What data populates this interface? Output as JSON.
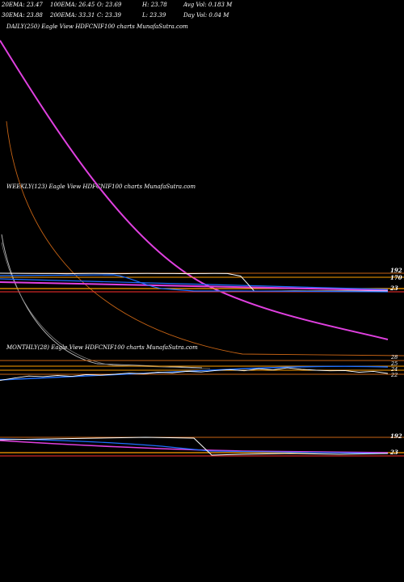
{
  "header": {
    "row1": [
      "20EMA: 23.47",
      "100EMA: 26.45",
      "O: 23.69",
      "H: 23.78",
      "Avg Vol: 0.183 M"
    ],
    "row2": [
      "30EMA: 23.88",
      "200EMA: 33.31",
      "C: 23.39",
      "L: 23.39",
      "Day Vol: 0.04 M"
    ]
  },
  "panels": {
    "daily": {
      "label": "DAILY(250) Eagle  View  HDFCNIF100  charts MunafaSutra.com"
    },
    "weekly": {
      "label": "WEEKLY(123) Eagle  View  HDFCNIF100  charts MunafaSutra.com",
      "right_labels": [
        "192",
        "170",
        "23"
      ]
    },
    "monthly": {
      "label": "MONTHLY(28) Eagle  View  HDFCNIF100  charts MunafaSutra.com",
      "right_labels": [
        "28",
        "25",
        "24",
        "22"
      ]
    },
    "bottom": {
      "right_labels": [
        "192",
        "23"
      ]
    }
  },
  "colors": {
    "background": "#000000",
    "price": "#ffffff",
    "ema_fast": "#1e6fff",
    "ema_mid": "#ffffff",
    "ema_100": "#e040e0",
    "ema_200": "#c86414",
    "grid": "#c86414",
    "marker": "#ffa000",
    "support": "#ff3030"
  },
  "chart_data": [
    {
      "type": "line",
      "panel": "daily",
      "series": [
        {
          "values": [
            58,
            52,
            47,
            43,
            39,
            36,
            33,
            31,
            29,
            27.5,
            26.5,
            25.6,
            25.0,
            24.6,
            24.3,
            24.1,
            23.9
          ]
        },
        {
          "values": [
            40,
            37,
            34,
            31.5,
            29.5,
            28,
            26.8,
            25.9,
            25.2,
            24.7,
            24.3,
            24.0,
            23.8,
            23.6,
            23.5,
            23.4,
            23.4
          ]
        }
      ]
    },
    {
      "type": "line",
      "panel": "weekly",
      "x_range": [
        0,
        123
      ],
      "y_range": [
        0,
        200
      ],
      "series": [
        {
          "values": [
            175,
            174,
            173,
            172,
            172,
            171,
            172,
            173,
            172,
            171,
            172,
            173,
            172,
            172,
            171,
            172,
            173,
            172,
            150,
            24,
            23,
            23,
            23.5,
            23,
            23.3,
            23,
            23.4,
            23.2,
            23,
            23.3
          ]
        },
        {
          "values": [
            170,
            168,
            166,
            164,
            162,
            160,
            158,
            156,
            154,
            152,
            150,
            140,
            110,
            80,
            60,
            45,
            35,
            28,
            25,
            24
          ]
        }
      ]
    },
    {
      "type": "line",
      "panel": "monthly",
      "y_range": [
        20,
        30
      ],
      "series": [
        {
          "values": [
            21.5,
            22.3,
            23.0,
            22.8,
            23.2,
            22.9,
            23.5,
            23.3,
            23.6,
            24.0,
            23.8,
            24.3,
            24.1,
            24.6,
            24.4,
            24.9,
            25.2,
            24.8,
            25.5,
            25.1,
            25.8,
            25.3,
            25.0,
            24.8,
            24.9,
            24.3,
            24.6,
            23.9
          ]
        }
      ]
    }
  ]
}
